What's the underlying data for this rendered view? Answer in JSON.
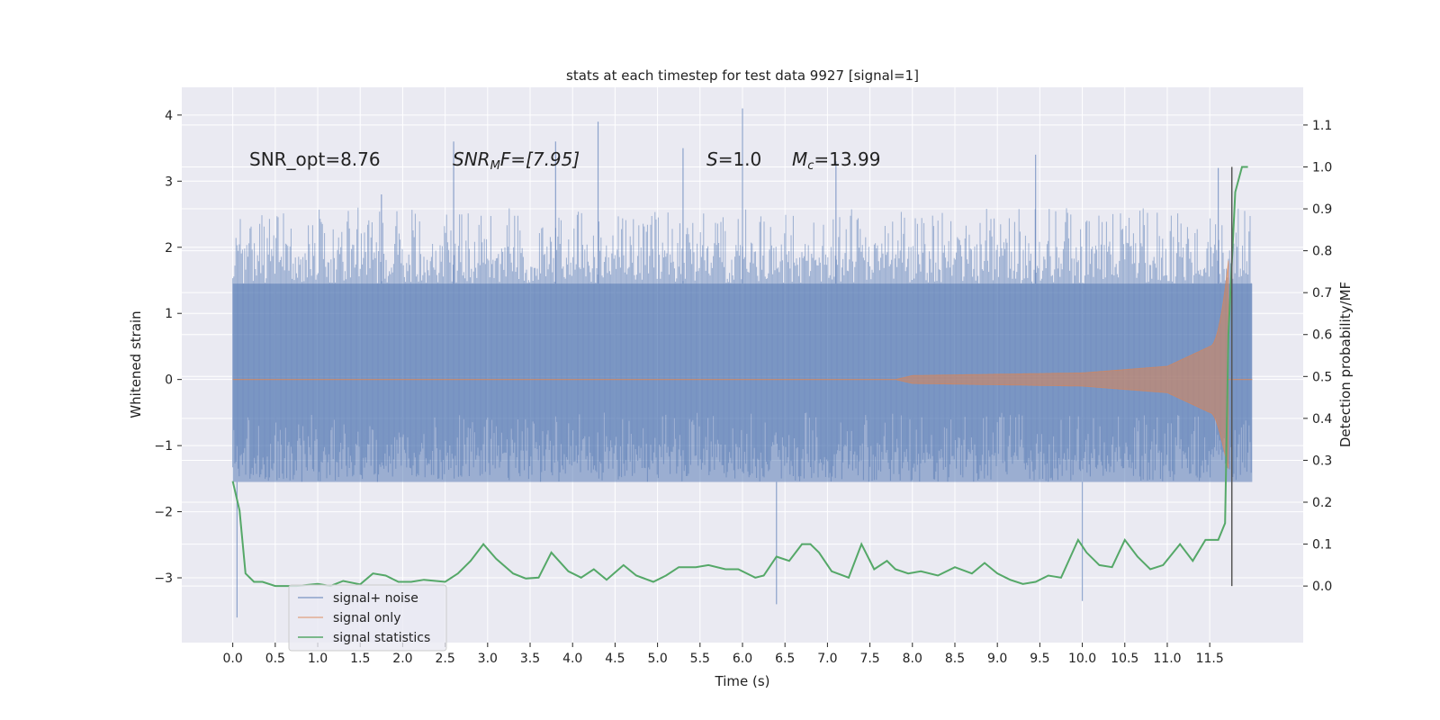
{
  "chart_data": {
    "type": "line",
    "title": "stats at each timestep for test data 9927 [signal=1]",
    "xlabel": "Time (s)",
    "ylabel": "Whitened strain",
    "y2label": "Detection probability/MF",
    "xlim": [
      -0.6,
      12.6
    ],
    "ylim": [
      -3.98,
      4.42
    ],
    "y2lim": [
      -0.135,
      1.19
    ],
    "x_ticks": [
      0.0,
      0.5,
      1.0,
      1.5,
      2.0,
      2.5,
      3.0,
      3.5,
      4.0,
      4.5,
      5.0,
      5.5,
      6.0,
      6.5,
      7.0,
      7.5,
      8.0,
      8.5,
      9.0,
      9.5,
      10.0,
      10.5,
      11.0,
      11.5
    ],
    "x_tick_labels": [
      "0.0",
      "0.5",
      "1.0",
      "1.5",
      "2.0",
      "2.5",
      "3.0",
      "3.5",
      "4.0",
      "4.5",
      "5.0",
      "5.5",
      "6.0",
      "6.5",
      "7.0",
      "7.5",
      "8.0",
      "8.5",
      "9.0",
      "9.5",
      "10.0",
      "10.5",
      "11.0",
      "11.5"
    ],
    "y_ticks": [
      -3,
      -2,
      -1,
      0,
      1,
      2,
      3,
      4
    ],
    "y_tick_labels": [
      "−3",
      "−2",
      "−1",
      "0",
      "1",
      "2",
      "3",
      "4"
    ],
    "y2_ticks": [
      0.0,
      0.1,
      0.2,
      0.3,
      0.4,
      0.5,
      0.6,
      0.7,
      0.8,
      0.9,
      1.0,
      1.1
    ],
    "y2_tick_labels": [
      "0.0",
      "0.1",
      "0.2",
      "0.3",
      "0.4",
      "0.5",
      "0.6",
      "0.7",
      "0.8",
      "0.9",
      "1.0",
      "1.1"
    ],
    "grid": true,
    "legend_position": "lower-left",
    "annotations": {
      "snr_opt": "SNR_opt=8.76",
      "snr_mf_base": "SNR",
      "snr_mf_sub": "M",
      "snr_mf_rest": "F=[7.95]",
      "s_base": "S",
      "s_rest": "=1.0",
      "mc_base": "M",
      "mc_sub": "c",
      "mc_rest": "=13.99"
    },
    "series": [
      {
        "name": "signal+ noise",
        "color": "#4c72b0",
        "axis": "left",
        "x_range": [
          0.0,
          12.0
        ],
        "envelope_upper": 1.45,
        "envelope_lower": -1.55,
        "typical_peak_upper": 2.6,
        "typical_peak_lower": -2.6,
        "spikes": [
          [
            0.05,
            -3.6
          ],
          [
            1.75,
            2.8
          ],
          [
            2.6,
            3.6
          ],
          [
            3.8,
            3.6
          ],
          [
            4.3,
            3.9
          ],
          [
            5.3,
            3.5
          ],
          [
            6.0,
            4.1
          ],
          [
            6.4,
            -3.4
          ],
          [
            7.1,
            3.3
          ],
          [
            9.45,
            3.4
          ],
          [
            10.0,
            -3.35
          ],
          [
            11.6,
            3.2
          ]
        ]
      },
      {
        "name": "signal only",
        "color": "#dd8452",
        "axis": "left",
        "x_range": [
          0.0,
          12.0
        ],
        "chirp_start": 7.8,
        "merger_time": 11.72,
        "amplitude_at_8": 0.06,
        "amplitude_at_10": 0.1,
        "amplitude_at_11": 0.2,
        "amplitude_at_11_5": 0.5,
        "peak_positive": 1.8,
        "peak_negative": -1.35
      },
      {
        "name": "signal statistics",
        "color": "#55a868",
        "axis": "right",
        "x": [
          0.0,
          0.08,
          0.15,
          0.25,
          0.35,
          0.5,
          0.75,
          1.0,
          1.15,
          1.3,
          1.5,
          1.65,
          1.8,
          1.95,
          2.1,
          2.25,
          2.5,
          2.65,
          2.8,
          2.95,
          3.1,
          3.3,
          3.45,
          3.6,
          3.75,
          3.95,
          4.1,
          4.25,
          4.4,
          4.6,
          4.75,
          4.95,
          5.1,
          5.25,
          5.45,
          5.6,
          5.8,
          5.95,
          6.15,
          6.25,
          6.4,
          6.55,
          6.7,
          6.8,
          6.9,
          7.05,
          7.25,
          7.4,
          7.55,
          7.7,
          7.8,
          7.95,
          8.1,
          8.3,
          8.5,
          8.7,
          8.85,
          9.0,
          9.15,
          9.3,
          9.45,
          9.6,
          9.75,
          9.95,
          10.05,
          10.2,
          10.35,
          10.5,
          10.65,
          10.8,
          10.95,
          11.15,
          11.3,
          11.45,
          11.6,
          11.68,
          11.72,
          11.8,
          11.88,
          11.95
        ],
        "y": [
          0.25,
          0.18,
          0.03,
          0.01,
          0.01,
          0.0,
          0.0,
          0.005,
          0.0,
          0.012,
          0.004,
          0.03,
          0.025,
          0.01,
          0.01,
          0.015,
          0.01,
          0.03,
          0.06,
          0.1,
          0.065,
          0.03,
          0.018,
          0.02,
          0.08,
          0.035,
          0.02,
          0.04,
          0.015,
          0.05,
          0.025,
          0.01,
          0.025,
          0.045,
          0.045,
          0.05,
          0.04,
          0.04,
          0.02,
          0.025,
          0.07,
          0.06,
          0.1,
          0.1,
          0.08,
          0.035,
          0.02,
          0.1,
          0.04,
          0.06,
          0.04,
          0.03,
          0.035,
          0.025,
          0.045,
          0.03,
          0.055,
          0.03,
          0.015,
          0.005,
          0.01,
          0.025,
          0.02,
          0.11,
          0.08,
          0.05,
          0.045,
          0.11,
          0.07,
          0.04,
          0.05,
          0.1,
          0.06,
          0.11,
          0.11,
          0.15,
          0.6,
          0.94,
          1.0,
          1.0
        ]
      }
    ],
    "marker_line": {
      "x": 11.76,
      "y2_range": [
        0.0,
        1.0
      ],
      "color": "#555555"
    }
  }
}
